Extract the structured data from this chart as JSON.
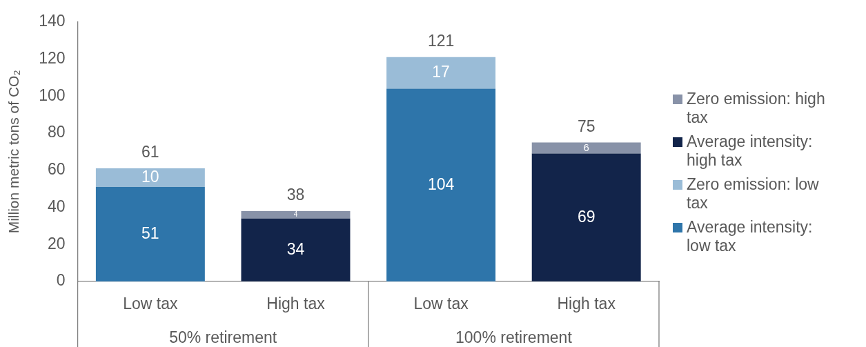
{
  "chart_data": {
    "type": "bar",
    "stacked": true,
    "ylabel": "Million metric tons of CO₂",
    "categories": [
      "Low tax",
      "High tax",
      "Low tax",
      "High tax"
    ],
    "series": [
      {
        "name": "Average intensity: low tax",
        "color": "#2e75aa",
        "values": [
          51,
          null,
          104,
          null
        ]
      },
      {
        "name": "Zero emission: low tax",
        "color": "#9abcd7",
        "values": [
          10,
          null,
          17,
          null
        ]
      },
      {
        "name": "Average intensity: high tax",
        "color": "#12244a",
        "values": [
          null,
          34,
          null,
          69
        ]
      },
      {
        "name": "Zero emission: high tax",
        "color": "#8892a8",
        "values": [
          null,
          4,
          null,
          6
        ]
      }
    ],
    "totals": [
      "61",
      "38",
      "121",
      "75"
    ],
    "data_labels": true,
    "annotations": [
      "50% retirement",
      "100% retirement"
    ],
    "ylim": [
      0,
      140
    ],
    "yticks": [
      0,
      20,
      40,
      60,
      80,
      100,
      120,
      140
    ],
    "grid": false,
    "legend": "right"
  }
}
